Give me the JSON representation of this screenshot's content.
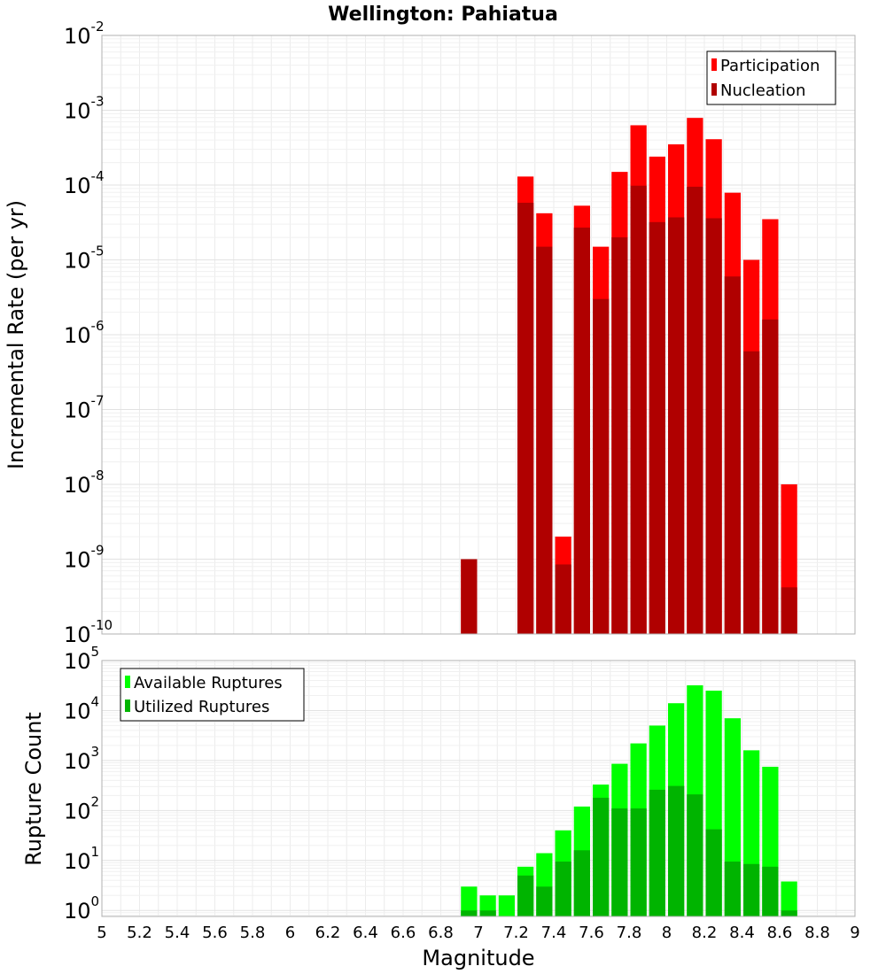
{
  "chart_data": {
    "type": "bar",
    "title": "Wellington: Pahiatua",
    "xlabel": "Magnitude",
    "xlim": [
      5,
      9
    ],
    "x_ticks": [
      "5",
      "5.2",
      "5.4",
      "5.6",
      "5.8",
      "6",
      "6.2",
      "6.4",
      "6.6",
      "6.8",
      "7",
      "7.2",
      "7.4",
      "7.6",
      "7.8",
      "8",
      "8.2",
      "8.4",
      "8.6",
      "8.8",
      "9"
    ],
    "bin_width": 0.1,
    "panels": [
      {
        "ylabel": "Incremental Rate (per yr)",
        "yscale": "log",
        "ylim_exp": [
          -10,
          -2
        ],
        "y_tick_exps": [
          "-10",
          "-9",
          "-8",
          "-7",
          "-6",
          "-5",
          "-4",
          "-3",
          "-2"
        ],
        "legend": {
          "position": "top-right"
        },
        "series": [
          {
            "name": "Participation",
            "color": "#ff0000",
            "x": [
              6.95,
              7.25,
              7.35,
              7.45,
              7.55,
              7.65,
              7.75,
              7.85,
              7.95,
              8.05,
              8.15,
              8.25,
              8.35,
              8.45,
              8.55,
              8.65
            ],
            "values": [
              1e-09,
              0.00013,
              4.2e-05,
              2e-09,
              5.3e-05,
              1.5e-05,
              0.00015,
              0.00063,
              0.00024,
              0.00035,
              0.00079,
              0.00041,
              7.9e-05,
              1e-05,
              3.5e-05,
              1e-08
            ]
          },
          {
            "name": "Nucleation",
            "color": "#b00000",
            "x": [
              6.95,
              7.25,
              7.35,
              7.45,
              7.55,
              7.65,
              7.75,
              7.85,
              7.95,
              8.05,
              8.15,
              8.25,
              8.35,
              8.45,
              8.55,
              8.65
            ],
            "values": [
              1e-09,
              5.8e-05,
              1.5e-05,
              8.5e-10,
              2.7e-05,
              3e-06,
              2e-05,
              9.8e-05,
              3.2e-05,
              3.7e-05,
              9.5e-05,
              3.6e-05,
              6e-06,
              6e-07,
              1.6e-06,
              4.2e-10
            ]
          }
        ]
      },
      {
        "ylabel": "Rupture Count",
        "yscale": "log",
        "ylim_exp": [
          -0.12,
          5
        ],
        "y_tick_exps": [
          "0",
          "1",
          "2",
          "3",
          "4",
          "5"
        ],
        "legend": {
          "position": "top-left"
        },
        "series": [
          {
            "name": "Available Ruptures",
            "color": "#00ff00",
            "x": [
              6.95,
              7.05,
              7.15,
              7.25,
              7.35,
              7.45,
              7.55,
              7.65,
              7.75,
              7.85,
              7.95,
              8.05,
              8.15,
              8.25,
              8.35,
              8.45,
              8.55,
              8.65
            ],
            "values": [
              3,
              2,
              2,
              7.5,
              14,
              40,
              120,
              330,
              860,
              2200,
              5000,
              14000,
              32000,
              25000,
              7000,
              1600,
              750,
              3.8
            ]
          },
          {
            "name": "Utilized Ruptures",
            "color": "#00b400",
            "x": [
              6.95,
              7.05,
              7.15,
              7.25,
              7.35,
              7.45,
              7.55,
              7.65,
              7.75,
              7.85,
              7.95,
              8.05,
              8.15,
              8.25,
              8.35,
              8.45,
              8.55,
              8.65
            ],
            "values": [
              1,
              1,
              0,
              5,
              3,
              9.5,
              16,
              180,
              110,
              110,
              260,
              310,
              210,
              42,
              9.5,
              8.5,
              7.5,
              1
            ]
          }
        ]
      }
    ]
  }
}
